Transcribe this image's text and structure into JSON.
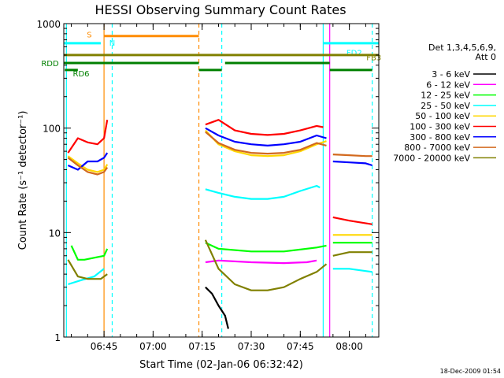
{
  "chart_data": {
    "type": "line",
    "title": "HESSI Observing Summary Count Rates",
    "xlabel": "Start Time (02-Jan-06 06:32:42)",
    "ylabel": "Count Rate (s⁻¹ detector⁻¹)",
    "y_scale": "log",
    "xlim": [
      "06:32:42",
      "08:09:00"
    ],
    "ylim": [
      1,
      1000
    ],
    "x_ticks": [
      "06:45",
      "07:00",
      "07:15",
      "07:30",
      "07:45",
      "08:00"
    ],
    "y_ticks": [
      {
        "value": 1,
        "label": "1"
      },
      {
        "value": 10,
        "label": "10"
      },
      {
        "value": 100,
        "label": "100"
      },
      {
        "value": 1000,
        "label": "1000"
      }
    ],
    "legend_header": [
      "Det 1,3,4,5,6,9,",
      "Att 0"
    ],
    "legend_position": "right",
    "series": [
      {
        "name": "3 - 6 keV",
        "color": "#000000",
        "segments": [
          [
            [
              "07:16",
              3.0
            ],
            [
              "07:18",
              2.6
            ],
            [
              "07:20",
              2.0
            ],
            [
              "07:22",
              1.6
            ],
            [
              "07:23",
              1.2
            ]
          ]
        ]
      },
      {
        "name": "6 - 12 keV",
        "color": "#ff00ff",
        "segments": [
          [
            [
              "07:16",
              5.2
            ],
            [
              "07:20",
              5.4
            ],
            [
              "07:30",
              5.2
            ],
            [
              "07:40",
              5.1
            ],
            [
              "07:47",
              5.2
            ],
            [
              "07:50",
              5.4
            ]
          ]
        ]
      },
      {
        "name": "12 - 25 keV",
        "color": "#00ff00",
        "segments": [
          [
            [
              "06:35",
              7.5
            ],
            [
              "06:37",
              5.5
            ],
            [
              "06:39",
              5.5
            ],
            [
              "06:45",
              6.0
            ],
            [
              "06:46",
              7.0
            ]
          ],
          [
            [
              "07:16",
              8.0
            ],
            [
              "07:20",
              7.0
            ],
            [
              "07:30",
              6.6
            ],
            [
              "07:40",
              6.6
            ],
            [
              "07:50",
              7.2
            ],
            [
              "07:53",
              7.5
            ]
          ],
          [
            [
              "07:55",
              8.0
            ],
            [
              "08:00",
              8.0
            ],
            [
              "08:05",
              8.0
            ],
            [
              "08:07",
              8.0
            ]
          ]
        ]
      },
      {
        "name": "25 - 50 keV",
        "color": "#00ffff",
        "segments": [
          [
            [
              "06:34",
              3.2
            ],
            [
              "06:38",
              3.5
            ],
            [
              "06:42",
              3.8
            ],
            [
              "06:45",
              4.5
            ]
          ],
          [
            [
              "07:16",
              26
            ],
            [
              "07:20",
              24
            ],
            [
              "07:25",
              22
            ],
            [
              "07:30",
              21
            ],
            [
              "07:35",
              21
            ],
            [
              "07:40",
              22
            ],
            [
              "07:45",
              25
            ],
            [
              "07:50",
              28
            ],
            [
              "07:51",
              27
            ]
          ],
          [
            [
              "07:55",
              4.5
            ],
            [
              "08:00",
              4.5
            ],
            [
              "08:07",
              4.2
            ]
          ]
        ]
      },
      {
        "name": "50 - 100 keV",
        "color": "#ffd700",
        "segments": [
          [
            [
              "06:34",
              54
            ],
            [
              "06:37",
              46
            ],
            [
              "06:40",
              40
            ],
            [
              "06:43",
              38
            ],
            [
              "06:45",
              40
            ],
            [
              "06:46",
              45
            ]
          ],
          [
            [
              "07:16",
              95
            ],
            [
              "07:20",
              70
            ],
            [
              "07:25",
              60
            ],
            [
              "07:30",
              55
            ],
            [
              "07:35",
              54
            ],
            [
              "07:40",
              55
            ],
            [
              "07:45",
              60
            ],
            [
              "07:50",
              70
            ],
            [
              "07:53",
              75
            ]
          ],
          [
            [
              "07:55",
              9.5
            ],
            [
              "08:00",
              9.5
            ],
            [
              "08:05",
              9.5
            ],
            [
              "08:07",
              9.5
            ]
          ]
        ]
      },
      {
        "name": "100 - 300 keV",
        "color": "#ff0000",
        "segments": [
          [
            [
              "06:34",
              58
            ],
            [
              "06:37",
              80
            ],
            [
              "06:40",
              73
            ],
            [
              "06:43",
              70
            ],
            [
              "06:45",
              80
            ],
            [
              "06:46",
              120
            ]
          ],
          [
            [
              "07:16",
              108
            ],
            [
              "07:20",
              120
            ],
            [
              "07:25",
              95
            ],
            [
              "07:30",
              88
            ],
            [
              "07:35",
              86
            ],
            [
              "07:40",
              88
            ],
            [
              "07:45",
              95
            ],
            [
              "07:50",
              105
            ],
            [
              "07:52",
              102
            ]
          ],
          [
            [
              "07:55",
              14
            ],
            [
              "08:00",
              13
            ],
            [
              "08:07",
              12
            ]
          ]
        ]
      },
      {
        "name": "300 - 800 keV",
        "color": "#0000ff",
        "segments": [
          [
            [
              "06:34",
              44
            ],
            [
              "06:37",
              40
            ],
            [
              "06:40",
              48
            ],
            [
              "06:43",
              48
            ],
            [
              "06:45",
              52
            ],
            [
              "06:46",
              58
            ]
          ],
          [
            [
              "07:16",
              100
            ],
            [
              "07:20",
              85
            ],
            [
              "07:25",
              74
            ],
            [
              "07:30",
              70
            ],
            [
              "07:35",
              68
            ],
            [
              "07:40",
              70
            ],
            [
              "07:45",
              74
            ],
            [
              "07:50",
              85
            ],
            [
              "07:53",
              80
            ]
          ],
          [
            [
              "07:55",
              48
            ],
            [
              "08:00",
              47
            ],
            [
              "08:05",
              46
            ],
            [
              "08:07",
              44
            ]
          ]
        ]
      },
      {
        "name": "800 - 7000 keV",
        "color": "#d2691e",
        "segments": [
          [
            [
              "06:34",
              52
            ],
            [
              "06:37",
              44
            ],
            [
              "06:40",
              38
            ],
            [
              "06:43",
              36
            ],
            [
              "06:45",
              38
            ],
            [
              "06:46",
              42
            ]
          ],
          [
            [
              "07:16",
              92
            ],
            [
              "07:20",
              72
            ],
            [
              "07:25",
              62
            ],
            [
              "07:30",
              58
            ],
            [
              "07:35",
              57
            ],
            [
              "07:40",
              58
            ],
            [
              "07:45",
              62
            ],
            [
              "07:50",
              72
            ],
            [
              "07:53",
              68
            ]
          ],
          [
            [
              "07:55",
              56
            ],
            [
              "08:00",
              55
            ],
            [
              "08:05",
              54
            ],
            [
              "08:07",
              54
            ]
          ]
        ]
      },
      {
        "name": "7000 - 20000 keV",
        "color": "#808000",
        "segments": [
          [
            [
              "06:34",
              5.5
            ],
            [
              "06:37",
              3.8
            ],
            [
              "06:40",
              3.6
            ],
            [
              "06:44",
              3.6
            ],
            [
              "06:46",
              4.0
            ]
          ],
          [
            [
              "07:16",
              8.5
            ],
            [
              "07:20",
              4.5
            ],
            [
              "07:25",
              3.2
            ],
            [
              "07:30",
              2.8
            ],
            [
              "07:35",
              2.8
            ],
            [
              "07:40",
              3.0
            ],
            [
              "07:45",
              3.6
            ],
            [
              "07:50",
              4.2
            ],
            [
              "07:53",
              5.0
            ]
          ],
          [
            [
              "07:55",
              6.0
            ],
            [
              "08:00",
              6.5
            ],
            [
              "08:05",
              6.5
            ],
            [
              "08:07",
              6.5
            ]
          ]
        ]
      }
    ],
    "flag_bars": [
      {
        "label": "S",
        "color": "#ff8c00",
        "y": 760,
        "label_at": "06:40:30",
        "label_y": 790,
        "segments": [
          [
            "06:45",
            "07:14"
          ]
        ]
      },
      {
        "label": "N",
        "color": "#00ffff",
        "y": 650,
        "label_at": "06:47:30",
        "label_y": 660,
        "segments": [
          [
            "06:32:42",
            "06:44"
          ]
        ]
      },
      {
        "label": "FD2",
        "color": "#00ffff",
        "y": 650,
        "label_at": "08:01:30",
        "label_y": 530,
        "segments": [
          [
            "07:52",
            "08:09"
          ]
        ]
      },
      {
        "label": "FB3",
        "color": "#808000",
        "y": 500,
        "label_at": "08:07:30",
        "label_y": 480,
        "segments": [
          [
            "06:32:42",
            "08:09"
          ]
        ]
      },
      {
        "label": "RDD",
        "color": "#008000",
        "y": 420,
        "label_at": "06:28:30",
        "label_y": 420,
        "segments": [
          [
            "06:32:42",
            "07:14"
          ],
          [
            "07:22",
            "07:54"
          ]
        ]
      },
      {
        "label": "RD6",
        "color": "#008000",
        "y": 360,
        "label_at": "06:38:00",
        "label_y": 335,
        "segments": [
          [
            "06:33",
            "06:37"
          ],
          [
            "07:14",
            "07:21"
          ],
          [
            "07:54",
            "08:07"
          ]
        ]
      }
    ],
    "vertical_markers": [
      {
        "time": "06:33:30",
        "color": "#00ffff",
        "style": "solid"
      },
      {
        "time": "06:45:00",
        "color": "#ff8c00",
        "style": "solid"
      },
      {
        "time": "06:47:30",
        "color": "#00ffff",
        "style": "dashed"
      },
      {
        "time": "07:14:00",
        "color": "#ff8c00",
        "style": "dashed"
      },
      {
        "time": "07:21:00",
        "color": "#00ffff",
        "style": "dashed"
      },
      {
        "time": "07:52:00",
        "color": "#00ffff",
        "style": "solid"
      },
      {
        "time": "07:54:00",
        "color": "#ff00ff",
        "style": "solid"
      },
      {
        "time": "08:07:00",
        "color": "#00ffff",
        "style": "dashed"
      }
    ],
    "timestamp": "18-Dec-2009 01:54"
  }
}
